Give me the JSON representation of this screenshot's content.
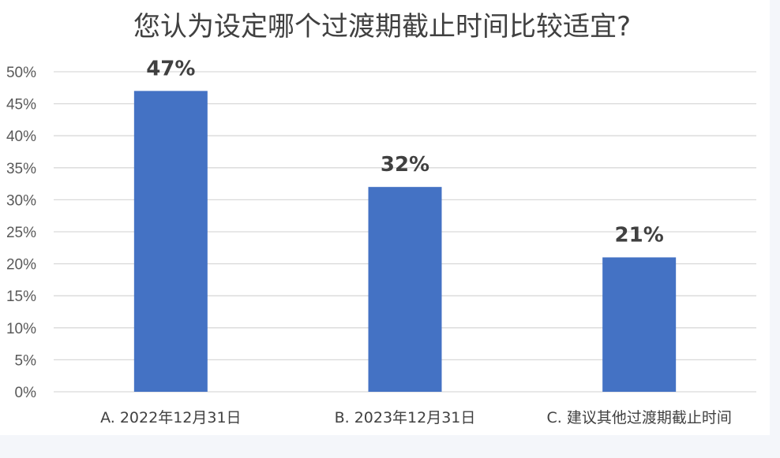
{
  "chart_data": {
    "type": "bar",
    "title": "您认为设定哪个过渡期截止时间比较适宜?",
    "categories": [
      "A. 2022年12月31日",
      "B. 2023年12月31日",
      "C. 建议其他过渡期截止时间"
    ],
    "values": [
      47,
      32,
      21
    ],
    "data_labels": [
      "47%",
      "32%",
      "21%"
    ],
    "y_ticks": [
      "0%",
      "5%",
      "10%",
      "15%",
      "20%",
      "25%",
      "30%",
      "35%",
      "40%",
      "45%",
      "50%"
    ],
    "ylim": [
      0,
      50
    ],
    "grid": true,
    "legend": "none",
    "bar_color": "#4472c4",
    "grid_color": "#d9d9d9"
  }
}
